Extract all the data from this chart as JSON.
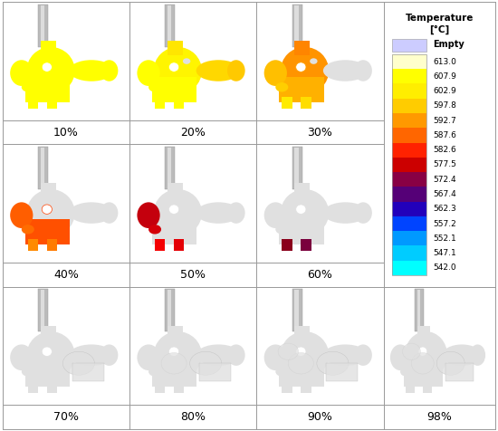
{
  "labels": [
    "10%",
    "20%",
    "30%",
    "40%",
    "50%",
    "60%",
    "70%",
    "80%",
    "90%",
    "98%"
  ],
  "colorbar_title": "Temperature\n[°C]",
  "colorbar_empty_label": "Empty",
  "colorbar_ticks": [
    613.0,
    607.9,
    602.9,
    597.8,
    592.7,
    587.6,
    582.6,
    577.5,
    572.4,
    567.4,
    562.3,
    557.2,
    552.1,
    547.1,
    542.0
  ],
  "colorbar_colors": [
    "#FFFFCC",
    "#FFFF00",
    "#FFEE00",
    "#FFCC00",
    "#FF9900",
    "#FF6600",
    "#FF2200",
    "#CC0000",
    "#880044",
    "#550077",
    "#2200BB",
    "#0044FF",
    "#0099FF",
    "#00CCFF",
    "#00FFFF"
  ],
  "empty_color": "#CCCCFF",
  "bg_color": "#FFFFFF",
  "border_color": "#999999",
  "label_fontsize": 9,
  "colorbar_title_fontsize": 7.5,
  "colorbar_tick_fontsize": 6.5
}
